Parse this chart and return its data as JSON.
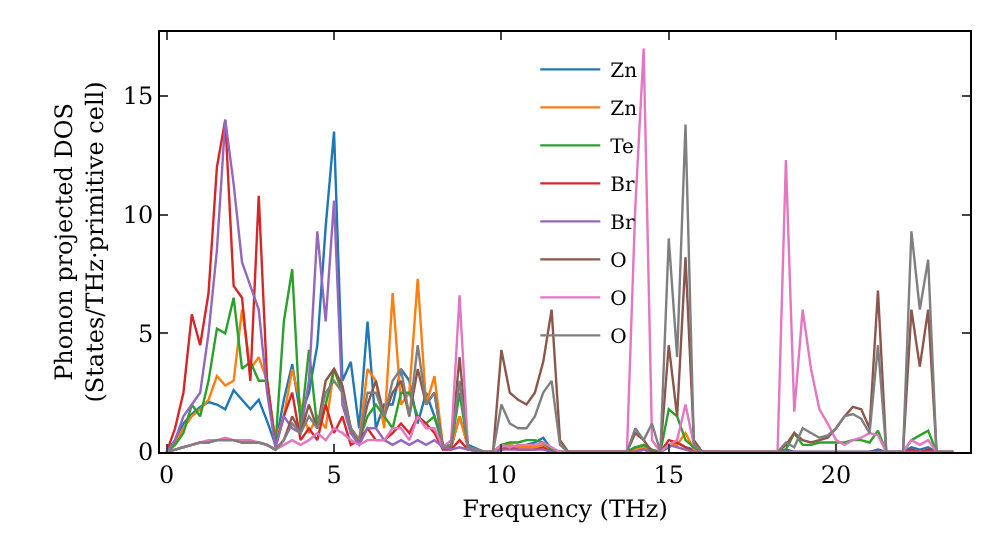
{
  "chart_data": {
    "type": "line",
    "xlabel": "Frequency (THz)",
    "ylabel": "Phonon projected DOS\n(States/THz·primitive cell)",
    "x": [
      0,
      0.25,
      0.5,
      0.75,
      1,
      1.25,
      1.5,
      1.75,
      2,
      2.25,
      2.5,
      2.75,
      3,
      3.25,
      3.5,
      3.75,
      4,
      4.25,
      4.5,
      4.75,
      5,
      5.25,
      5.5,
      5.75,
      6,
      6.25,
      6.5,
      6.75,
      7,
      7.25,
      7.5,
      7.75,
      8,
      8.25,
      8.5,
      8.75,
      9,
      9.5,
      9.75,
      10,
      10.25,
      10.5,
      10.75,
      11,
      11.25,
      11.5,
      11.75,
      12,
      13.5,
      13.75,
      14,
      14.25,
      14.5,
      14.75,
      15,
      15.25,
      15.5,
      15.75,
      16,
      16.5,
      18,
      18.25,
      18.5,
      18.75,
      19,
      19.25,
      19.5,
      19.75,
      20,
      20.25,
      20.5,
      20.75,
      21,
      21.25,
      21.5,
      22,
      22.25,
      22.5,
      22.75,
      23,
      23.5
    ],
    "series": [
      {
        "name": "Zn",
        "color": "#1f77b4",
        "values": [
          0,
          0.5,
          1.2,
          1.6,
          1.9,
          2.1,
          2.0,
          1.8,
          2.6,
          2.2,
          1.8,
          2.2,
          1.3,
          0.3,
          2.2,
          3.7,
          1.5,
          2.5,
          4.5,
          9.5,
          13.5,
          3.0,
          3.8,
          1.0,
          5.5,
          1.0,
          2.0,
          2.0,
          3.5,
          3.0,
          1.2,
          2.5,
          1.5,
          0.3,
          0.2,
          1.5,
          0.3,
          0,
          0,
          0.2,
          0.3,
          0.2,
          0.3,
          0.4,
          0.6,
          0.1,
          0,
          0,
          0,
          0,
          0.2,
          0.2,
          0,
          0,
          0.2,
          0.4,
          0.2,
          0.1,
          0,
          0,
          0,
          0,
          0.1,
          0,
          0,
          0,
          0,
          0,
          0,
          0,
          0,
          0,
          0,
          0.1,
          0,
          0,
          0.2,
          0.1,
          0.2,
          0,
          0
        ]
      },
      {
        "name": "Zn",
        "color": "#ff7f0e",
        "values": [
          0,
          0.4,
          1.0,
          1.5,
          1.8,
          2.2,
          3.2,
          2.8,
          3.0,
          6.0,
          3.5,
          4.0,
          3.0,
          0.5,
          1.5,
          3.5,
          2.0,
          0.8,
          1.5,
          1.0,
          3.5,
          2.5,
          1.0,
          0.5,
          3.5,
          3.0,
          1.0,
          6.7,
          2.0,
          2.5,
          7.3,
          2.0,
          3.2,
          0.3,
          0.2,
          1.5,
          0.2,
          0,
          0,
          0.2,
          0.3,
          0.2,
          0.2,
          0.2,
          0.3,
          0.1,
          0,
          0,
          0,
          0,
          0.1,
          0.2,
          0,
          0,
          0.3,
          0.3,
          0.8,
          0.1,
          0,
          0,
          null,
          null,
          null,
          null,
          null,
          null,
          null,
          null,
          null,
          null,
          null,
          null,
          null,
          null,
          null,
          null,
          null,
          null,
          null,
          null,
          null
        ]
      },
      {
        "name": "Te",
        "color": "#2ca02c",
        "values": [
          0,
          0.3,
          0.8,
          2.0,
          1.5,
          3.0,
          5.2,
          5.0,
          6.5,
          3.5,
          3.8,
          3.0,
          3.0,
          0.3,
          5.5,
          7.7,
          1.0,
          4.3,
          1.0,
          2.0,
          3.5,
          2.5,
          0.8,
          0.5,
          1.5,
          2.0,
          1.5,
          1.0,
          2.5,
          2.5,
          1.5,
          1.2,
          1.5,
          0.3,
          0.2,
          2.5,
          0.2,
          0,
          0,
          0.3,
          0.4,
          0.4,
          0.5,
          0.5,
          0.4,
          0.1,
          0,
          0,
          0,
          0,
          0.2,
          0.3,
          0.1,
          0,
          1.8,
          1.5,
          0.5,
          0.2,
          0,
          0,
          0,
          0,
          0.1,
          0.8,
          0.3,
          0.3,
          0.4,
          0.4,
          0.4,
          0.4,
          0.5,
          0.5,
          0.4,
          0.9,
          0,
          0,
          0.5,
          0.7,
          0.9,
          0,
          0
        ]
      },
      {
        "name": "Br",
        "color": "#d62728",
        "values": [
          0,
          1.0,
          2.5,
          5.8,
          4.5,
          6.7,
          12.0,
          14.0,
          7.0,
          6.5,
          3.0,
          10.8,
          3.0,
          0.2,
          1.5,
          2.5,
          0.5,
          1.0,
          0.5,
          2.0,
          0.8,
          1.5,
          0.3,
          0.5,
          1.0,
          0.5,
          0.5,
          0.8,
          1.2,
          0.8,
          1.5,
          1.2,
          0.8,
          0.1,
          0.1,
          0.5,
          0.1,
          0,
          0,
          0.1,
          0.2,
          0.1,
          0.1,
          0.1,
          0.2,
          0,
          0,
          0,
          0,
          0,
          0,
          0.1,
          0,
          0,
          0.5,
          0.4,
          0.2,
          0,
          0,
          0,
          0,
          0,
          0,
          0,
          0,
          0,
          0,
          0,
          0,
          0,
          0,
          0,
          0,
          0,
          0,
          0,
          0.1,
          0,
          0.1,
          0,
          0
        ]
      },
      {
        "name": "Br",
        "color": "#9467bd",
        "values": [
          0,
          0.5,
          1.5,
          2.0,
          2.5,
          5.0,
          8.5,
          14.0,
          11.3,
          8.0,
          7.0,
          6.0,
          2.5,
          0.2,
          1.5,
          1.0,
          0.8,
          3.0,
          9.3,
          5.5,
          10.6,
          2.0,
          0.8,
          0.3,
          1.0,
          1.0,
          0.5,
          0.3,
          0.5,
          0.3,
          0.5,
          0.3,
          0.5,
          0.2,
          0.1,
          0.2,
          0.1,
          0,
          0,
          0.1,
          0.1,
          0.1,
          0.1,
          0.1,
          0.1,
          0,
          0,
          0,
          0,
          0,
          0,
          0.1,
          0,
          0,
          0.3,
          0.2,
          0.1,
          0,
          0,
          0,
          0,
          0,
          0,
          0,
          0,
          0,
          0,
          0,
          0,
          0,
          0,
          0,
          0,
          0,
          0,
          0,
          0,
          0,
          0,
          0,
          0
        ]
      },
      {
        "name": "O",
        "color": "#8c564b",
        "values": [
          0,
          0.1,
          0.2,
          0.3,
          0.4,
          0.4,
          0.5,
          0.5,
          0.5,
          0.4,
          0.4,
          0.4,
          0.3,
          0.1,
          0.5,
          1.5,
          0.8,
          2.0,
          1.0,
          3.0,
          3.5,
          2.8,
          1.0,
          0.5,
          2.0,
          3.0,
          1.5,
          2.5,
          3.0,
          1.5,
          3.5,
          2.0,
          2.5,
          0.2,
          0.3,
          4.0,
          0.2,
          0,
          0,
          4.3,
          2.5,
          2.2,
          2.0,
          2.5,
          3.8,
          6.0,
          0.5,
          0,
          0,
          0,
          0.8,
          0.5,
          0,
          0,
          4.5,
          1.5,
          8.2,
          0.5,
          0,
          0,
          0,
          0,
          0.3,
          0.8,
          0.5,
          0.4,
          0.5,
          0.6,
          1.0,
          1.5,
          1.9,
          1.8,
          1.0,
          6.8,
          0,
          0,
          6.0,
          3.6,
          6.0,
          0,
          0
        ]
      },
      {
        "name": "O",
        "color": "#e377c2",
        "values": [
          0,
          0.1,
          0.2,
          0.3,
          0.4,
          0.5,
          0.5,
          0.6,
          0.5,
          0.5,
          0.5,
          0.4,
          0.3,
          0.1,
          0.3,
          0.5,
          0.3,
          0.5,
          0.8,
          0.5,
          1.0,
          0.8,
          0.5,
          0.3,
          0.5,
          0.5,
          0.5,
          1.0,
          1.0,
          0.5,
          1.5,
          1.0,
          1.0,
          0.2,
          0.5,
          6.6,
          0.2,
          0,
          0,
          0.3,
          0.2,
          0.3,
          0.3,
          0.3,
          0.4,
          0.2,
          0,
          0,
          0,
          0,
          10.3,
          17.0,
          0.5,
          0,
          0.3,
          0.5,
          2.0,
          0.3,
          0,
          0,
          0,
          0,
          12.3,
          1.7,
          6.0,
          3.5,
          1.8,
          1.2,
          0.5,
          0.3,
          0.5,
          0.6,
          0.8,
          0.7,
          0,
          0,
          0.5,
          0.3,
          0.5,
          0,
          0
        ]
      },
      {
        "name": "O",
        "color": "#7f7f7f",
        "values": [
          0,
          0.1,
          0.2,
          0.3,
          0.4,
          0.4,
          0.5,
          0.5,
          0.5,
          0.4,
          0.4,
          0.4,
          0.3,
          0.1,
          0.5,
          1.2,
          0.8,
          1.5,
          1.0,
          2.5,
          3.0,
          2.5,
          1.0,
          0.5,
          2.5,
          2.5,
          1.5,
          3.0,
          3.5,
          1.5,
          4.5,
          2.0,
          2.5,
          0.2,
          0.3,
          3.0,
          0.2,
          0,
          0,
          2.0,
          1.2,
          1.0,
          1.0,
          1.5,
          2.5,
          3.0,
          0.3,
          0,
          0,
          0,
          1.0,
          0.5,
          1.2,
          0,
          9.0,
          4.0,
          13.8,
          0.3,
          0,
          0,
          0,
          0,
          0.4,
          0.2,
          1.0,
          0.8,
          0.6,
          0.7,
          1.0,
          1.5,
          1.6,
          1.4,
          0.8,
          4.5,
          0,
          0,
          9.3,
          6.0,
          8.1,
          0,
          0
        ]
      }
    ],
    "xlim": [
      -0.2,
      24
    ],
    "xticks": [
      0,
      5,
      10,
      15,
      20
    ],
    "ylim": [
      0,
      17.7
    ],
    "yticks": [
      0,
      5,
      10,
      15
    ],
    "grid": false,
    "legend": "top",
    "marker": "none",
    "line_style": "solid"
  }
}
